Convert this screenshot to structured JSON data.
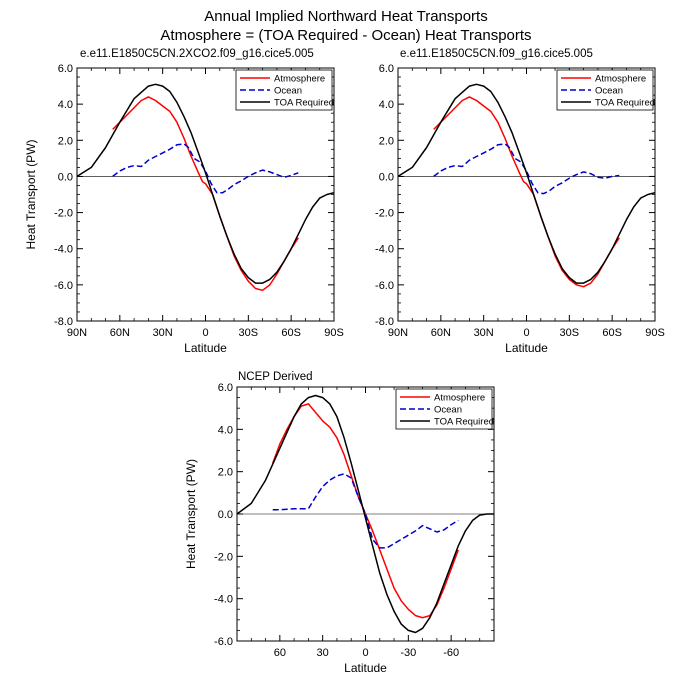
{
  "figure": {
    "title": "Annual Implied Northward Heat Transports",
    "subtitle": "Atmosphere = (TOA Required - Ocean) Heat Transports"
  },
  "colors": {
    "atmosphere": "#ff0000",
    "ocean": "#0000cc",
    "toa": "#000000"
  },
  "chart_data": [
    {
      "type": "line",
      "title": "e.e11.E1850C5CN.2XCO2.f09_g16.cice5.005",
      "xlabel": "Latitude",
      "ylabel": "Heat Transport (PW)",
      "xlim": [
        90,
        -90
      ],
      "ylim": [
        -8,
        6
      ],
      "xticks": [
        90,
        60,
        30,
        0,
        -30,
        -60,
        -90
      ],
      "xtick_labels": [
        "90N",
        "60N",
        "30N",
        "0",
        "30S",
        "60S",
        "90S"
      ],
      "yticks": [
        -8,
        -6,
        -4,
        -2,
        0,
        2,
        4,
        6
      ],
      "ytick_labels": [
        "-8.0",
        "-6.0",
        "-4.0",
        "-2.0",
        "0.0",
        "2.0",
        "4.0",
        "6.0"
      ],
      "legend": "top-right",
      "series": [
        {
          "name": "Atmosphere",
          "style": "solid",
          "x": [
            65,
            55,
            45,
            40,
            35,
            30,
            25,
            20,
            15,
            10,
            5,
            2,
            0,
            -5,
            -10,
            -15,
            -20,
            -25,
            -30,
            -35,
            -40,
            -45,
            -50,
            -55,
            -60,
            -65
          ],
          "y": [
            2.6,
            3.4,
            4.2,
            4.4,
            4.2,
            3.9,
            3.6,
            3.0,
            2.1,
            1.1,
            0.2,
            -0.3,
            -0.4,
            -1.0,
            -2.2,
            -3.3,
            -4.4,
            -5.2,
            -5.8,
            -6.2,
            -6.3,
            -6.0,
            -5.4,
            -4.7,
            -4.0,
            -3.4
          ]
        },
        {
          "name": "Ocean",
          "style": "dashed",
          "x": [
            65,
            60,
            55,
            50,
            45,
            40,
            35,
            30,
            25,
            20,
            15,
            12,
            8,
            4,
            0,
            -4,
            -8,
            -12,
            -16,
            -20,
            -25,
            -30,
            -35,
            -40,
            -45,
            -50,
            -55,
            -60,
            -65
          ],
          "y": [
            0.0,
            0.3,
            0.5,
            0.6,
            0.55,
            0.9,
            1.1,
            1.3,
            1.5,
            1.75,
            1.8,
            1.6,
            1.0,
            0.8,
            0.3,
            -0.4,
            -0.9,
            -0.9,
            -0.7,
            -0.45,
            -0.25,
            0.0,
            0.2,
            0.35,
            0.25,
            0.1,
            -0.05,
            0.05,
            0.2
          ]
        },
        {
          "name": "TOA Required",
          "style": "solid",
          "x": [
            90,
            80,
            70,
            60,
            50,
            40,
            35,
            30,
            25,
            20,
            15,
            10,
            5,
            0,
            -5,
            -10,
            -15,
            -20,
            -25,
            -30,
            -35,
            -40,
            -45,
            -50,
            -55,
            -60,
            -65,
            -70,
            -75,
            -80,
            -85,
            -90
          ],
          "y": [
            0.0,
            0.5,
            1.6,
            3.0,
            4.3,
            5.0,
            5.1,
            5.0,
            4.7,
            4.1,
            3.3,
            2.4,
            1.3,
            0.2,
            -1.0,
            -2.2,
            -3.3,
            -4.3,
            -5.1,
            -5.6,
            -5.9,
            -5.9,
            -5.7,
            -5.3,
            -4.7,
            -4.0,
            -3.2,
            -2.4,
            -1.7,
            -1.2,
            -1.0,
            -0.9
          ]
        }
      ]
    },
    {
      "type": "line",
      "title": "e.e11.E1850C5CN.f09_g16.cice5.005",
      "xlabel": "Latitude",
      "ylabel": "",
      "xlim": [
        90,
        -90
      ],
      "ylim": [
        -8,
        6
      ],
      "xticks": [
        90,
        60,
        30,
        0,
        -30,
        -60,
        -90
      ],
      "xtick_labels": [
        "90N",
        "60N",
        "30N",
        "0",
        "30S",
        "60S",
        "90S"
      ],
      "yticks": [
        -8,
        -6,
        -4,
        -2,
        0,
        2,
        4,
        6
      ],
      "ytick_labels": [
        "-8.0",
        "-6.0",
        "-4.0",
        "-2.0",
        "0.0",
        "2.0",
        "4.0",
        "6.0"
      ],
      "legend": "top-right",
      "series": [
        {
          "name": "Atmosphere",
          "style": "solid",
          "x": [
            65,
            55,
            45,
            40,
            35,
            30,
            25,
            20,
            15,
            10,
            5,
            2,
            0,
            -5,
            -10,
            -15,
            -20,
            -25,
            -30,
            -35,
            -40,
            -45,
            -50,
            -55,
            -60,
            -65
          ],
          "y": [
            2.6,
            3.4,
            4.2,
            4.4,
            4.2,
            3.9,
            3.6,
            3.0,
            2.1,
            1.1,
            0.2,
            -0.3,
            -0.4,
            -1.0,
            -2.2,
            -3.3,
            -4.4,
            -5.2,
            -5.7,
            -6.0,
            -6.1,
            -5.9,
            -5.4,
            -4.7,
            -4.0,
            -3.4
          ]
        },
        {
          "name": "Ocean",
          "style": "dashed",
          "x": [
            65,
            60,
            55,
            50,
            45,
            40,
            35,
            30,
            25,
            20,
            15,
            12,
            8,
            4,
            0,
            -4,
            -8,
            -12,
            -16,
            -20,
            -25,
            -30,
            -35,
            -40,
            -45,
            -50,
            -55,
            -60,
            -65
          ],
          "y": [
            0.0,
            0.3,
            0.5,
            0.6,
            0.55,
            0.9,
            1.1,
            1.3,
            1.5,
            1.75,
            1.8,
            1.6,
            1.0,
            0.8,
            0.3,
            -0.4,
            -0.9,
            -0.95,
            -0.8,
            -0.55,
            -0.35,
            -0.1,
            0.1,
            0.25,
            0.15,
            -0.05,
            -0.1,
            0.0,
            0.05
          ]
        },
        {
          "name": "TOA Required",
          "style": "solid",
          "x": [
            90,
            80,
            70,
            60,
            50,
            40,
            35,
            30,
            25,
            20,
            15,
            10,
            5,
            0,
            -5,
            -10,
            -15,
            -20,
            -25,
            -30,
            -35,
            -40,
            -45,
            -50,
            -55,
            -60,
            -65,
            -70,
            -75,
            -80,
            -85,
            -90
          ],
          "y": [
            0.0,
            0.5,
            1.6,
            3.0,
            4.3,
            5.0,
            5.1,
            5.0,
            4.7,
            4.1,
            3.3,
            2.4,
            1.3,
            0.2,
            -1.0,
            -2.2,
            -3.3,
            -4.3,
            -5.1,
            -5.6,
            -5.9,
            -5.9,
            -5.7,
            -5.3,
            -4.7,
            -4.0,
            -3.2,
            -2.4,
            -1.7,
            -1.2,
            -1.0,
            -0.9
          ]
        }
      ]
    },
    {
      "type": "line",
      "title": "NCEP Derived",
      "xlabel": "Latitude",
      "ylabel": "Heat Transport (PW)",
      "xlim": [
        90,
        -90
      ],
      "ylim": [
        -6,
        6
      ],
      "xticks": [
        60,
        30,
        0,
        -30,
        -60
      ],
      "xtick_labels": [
        "60",
        "30",
        "0",
        "-30",
        "-60"
      ],
      "yticks": [
        -6,
        -4,
        -2,
        0,
        2,
        4,
        6
      ],
      "ytick_labels": [
        "-6.0",
        "-4.0",
        "-2.0",
        "0.0",
        "2.0",
        "4.0",
        "6.0"
      ],
      "legend": "top-right",
      "series": [
        {
          "name": "Atmosphere",
          "style": "solid",
          "x": [
            65,
            60,
            55,
            50,
            45,
            40,
            35,
            30,
            25,
            20,
            15,
            10,
            5,
            0,
            -5,
            -10,
            -15,
            -20,
            -25,
            -30,
            -35,
            -40,
            -45,
            -50,
            -55,
            -60,
            -65
          ],
          "y": [
            2.4,
            3.3,
            4.0,
            4.6,
            5.1,
            5.2,
            4.8,
            4.4,
            4.1,
            3.6,
            2.8,
            1.8,
            0.8,
            0.0,
            -0.8,
            -1.7,
            -2.6,
            -3.5,
            -4.1,
            -4.5,
            -4.8,
            -4.9,
            -4.8,
            -4.3,
            -3.5,
            -2.6,
            -1.7
          ]
        },
        {
          "name": "Ocean",
          "style": "dashed",
          "x": [
            65,
            60,
            55,
            50,
            45,
            40,
            35,
            30,
            25,
            20,
            15,
            10,
            5,
            0,
            -5,
            -10,
            -15,
            -20,
            -25,
            -30,
            -35,
            -40,
            -45,
            -50,
            -55,
            -60,
            -65
          ],
          "y": [
            0.2,
            0.2,
            0.22,
            0.25,
            0.25,
            0.25,
            0.8,
            1.3,
            1.6,
            1.8,
            1.9,
            1.7,
            0.8,
            0.0,
            -1.2,
            -1.6,
            -1.6,
            -1.4,
            -1.2,
            -1.0,
            -0.8,
            -0.55,
            -0.7,
            -0.85,
            -0.75,
            -0.5,
            -0.3
          ]
        },
        {
          "name": "TOA Required",
          "style": "solid",
          "x": [
            90,
            80,
            70,
            60,
            50,
            45,
            40,
            35,
            30,
            25,
            20,
            15,
            10,
            5,
            0,
            -5,
            -10,
            -15,
            -20,
            -25,
            -30,
            -35,
            -40,
            -45,
            -50,
            -55,
            -60,
            -65,
            -70,
            -75,
            -80,
            -85,
            -90
          ],
          "y": [
            0.0,
            0.5,
            1.6,
            3.1,
            4.6,
            5.2,
            5.5,
            5.6,
            5.5,
            5.2,
            4.6,
            3.6,
            2.4,
            1.1,
            -0.2,
            -1.5,
            -2.8,
            -3.8,
            -4.6,
            -5.2,
            -5.5,
            -5.6,
            -5.4,
            -4.9,
            -4.2,
            -3.3,
            -2.4,
            -1.5,
            -0.8,
            -0.3,
            -0.05,
            0.0,
            0.0
          ]
        }
      ]
    }
  ]
}
